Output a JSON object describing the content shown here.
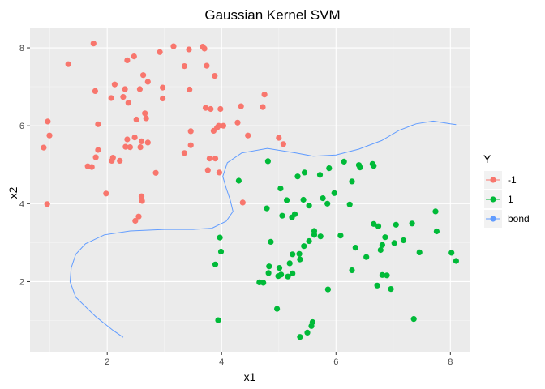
{
  "chart_data": {
    "type": "scatter",
    "title": "Gaussian Kernel SVM",
    "xlabel": "x1",
    "ylabel": "x2",
    "xlim": [
      0.65,
      8.35
    ],
    "ylim": [
      0.2,
      8.5
    ],
    "x_ticks": [
      2,
      4,
      6,
      8
    ],
    "y_ticks": [
      2,
      4,
      6,
      8
    ],
    "grid": true,
    "legend": {
      "title": "Y",
      "position": "right",
      "entries": [
        {
          "label": "-1",
          "color": "#F8766D"
        },
        {
          "label": "1",
          "color": "#00BA38"
        },
        {
          "label": "bond",
          "color": "#619CFF"
        }
      ]
    },
    "series": [
      {
        "name": "-1",
        "color": "#F8766D",
        "points": [
          [
            1.76,
            8.11
          ],
          [
            3.16,
            8.04
          ],
          [
            3.67,
            8.03
          ],
          [
            3.43,
            7.96
          ],
          [
            3.7,
            7.98
          ],
          [
            2.47,
            7.78
          ],
          [
            2.35,
            7.68
          ],
          [
            2.92,
            7.89
          ],
          [
            1.32,
            7.58
          ],
          [
            3.35,
            7.53
          ],
          [
            3.74,
            7.54
          ],
          [
            2.63,
            7.3
          ],
          [
            2.71,
            7.13
          ],
          [
            3.88,
            7.28
          ],
          [
            2.13,
            7.06
          ],
          [
            2.31,
            6.94
          ],
          [
            2.57,
            6.94
          ],
          [
            2.97,
            6.98
          ],
          [
            3.44,
            6.93
          ],
          [
            2.97,
            6.7
          ],
          [
            4.75,
            6.8
          ],
          [
            2.28,
            6.74
          ],
          [
            2.07,
            6.71
          ],
          [
            2.37,
            6.59
          ],
          [
            1.79,
            6.89
          ],
          [
            3.72,
            6.46
          ],
          [
            3.81,
            6.43
          ],
          [
            3.98,
            6.43
          ],
          [
            4.34,
            6.5
          ],
          [
            4.72,
            6.48
          ],
          [
            2.66,
            6.32
          ],
          [
            2.51,
            6.16
          ],
          [
            2.68,
            6.19
          ],
          [
            0.96,
            6.11
          ],
          [
            1.84,
            6.04
          ],
          [
            4.28,
            6.08
          ],
          [
            3.95,
            6.0
          ],
          [
            4.03,
            6.0
          ],
          [
            3.86,
            5.87
          ],
          [
            3.46,
            5.86
          ],
          [
            3.92,
            5.95
          ],
          [
            4.46,
            5.75
          ],
          [
            0.99,
            5.75
          ],
          [
            2.35,
            5.65
          ],
          [
            2.48,
            5.7
          ],
          [
            2.6,
            5.6
          ],
          [
            2.58,
            5.45
          ],
          [
            2.71,
            5.57
          ],
          [
            2.4,
            5.45
          ],
          [
            2.32,
            5.46
          ],
          [
            2.1,
            5.18
          ],
          [
            1.84,
            5.38
          ],
          [
            1.8,
            5.19
          ],
          [
            0.89,
            5.44
          ],
          [
            3.35,
            5.3
          ],
          [
            3.46,
            5.5
          ],
          [
            5.0,
            5.69
          ],
          [
            5.08,
            5.53
          ],
          [
            1.66,
            4.96
          ],
          [
            1.73,
            4.94
          ],
          [
            3.79,
            5.16
          ],
          [
            3.89,
            5.16
          ],
          [
            2.08,
            5.1
          ],
          [
            2.22,
            5.1
          ],
          [
            3.76,
            4.86
          ],
          [
            2.85,
            4.79
          ],
          [
            3.96,
            4.8
          ],
          [
            1.98,
            4.26
          ],
          [
            2.6,
            4.19
          ],
          [
            2.61,
            4.07
          ],
          [
            0.95,
            3.99
          ],
          [
            4.37,
            4.03
          ],
          [
            2.55,
            3.67
          ],
          [
            2.49,
            3.56
          ]
        ]
      },
      {
        "name": "1",
        "color": "#00BA38",
        "points": [
          [
            6.14,
            5.08
          ],
          [
            6.64,
            5.02
          ],
          [
            6.66,
            4.97
          ],
          [
            6.4,
            4.99
          ],
          [
            6.42,
            4.93
          ],
          [
            5.88,
            4.91
          ],
          [
            5.45,
            4.8
          ],
          [
            5.33,
            4.7
          ],
          [
            4.81,
            5.09
          ],
          [
            5.72,
            4.74
          ],
          [
            4.3,
            4.59
          ],
          [
            6.28,
            4.57
          ],
          [
            5.03,
            4.39
          ],
          [
            5.97,
            4.27
          ],
          [
            5.77,
            4.14
          ],
          [
            5.43,
            4.1
          ],
          [
            5.14,
            4.09
          ],
          [
            6.24,
            3.98
          ],
          [
            5.85,
            4.0
          ],
          [
            5.53,
            3.95
          ],
          [
            4.79,
            3.88
          ],
          [
            7.74,
            3.8
          ],
          [
            5.28,
            3.73
          ],
          [
            5.23,
            3.65
          ],
          [
            5.06,
            3.69
          ],
          [
            6.66,
            3.48
          ],
          [
            6.74,
            3.42
          ],
          [
            7.05,
            3.46
          ],
          [
            7.33,
            3.49
          ],
          [
            5.62,
            3.3
          ],
          [
            5.62,
            3.2
          ],
          [
            5.73,
            3.16
          ],
          [
            5.53,
            3.04
          ],
          [
            4.86,
            3.02
          ],
          [
            7.76,
            3.29
          ],
          [
            3.97,
            3.13
          ],
          [
            6.08,
            3.18
          ],
          [
            6.86,
            3.14
          ],
          [
            7.18,
            3.06
          ],
          [
            7.02,
            2.99
          ],
          [
            6.81,
            2.94
          ],
          [
            6.34,
            2.87
          ],
          [
            5.44,
            2.91
          ],
          [
            5.36,
            2.71
          ],
          [
            6.53,
            2.63
          ],
          [
            5.24,
            2.7
          ],
          [
            5.37,
            2.57
          ],
          [
            3.99,
            2.77
          ],
          [
            7.46,
            2.75
          ],
          [
            6.78,
            2.81
          ],
          [
            8.02,
            2.74
          ],
          [
            5.19,
            2.47
          ],
          [
            5.01,
            2.35
          ],
          [
            8.1,
            2.53
          ],
          [
            4.83,
            2.39
          ],
          [
            3.89,
            2.44
          ],
          [
            4.82,
            2.22
          ],
          [
            5.24,
            2.21
          ],
          [
            6.28,
            2.29
          ],
          [
            5.16,
            2.13
          ],
          [
            4.99,
            2.14
          ],
          [
            5.04,
            2.18
          ],
          [
            6.81,
            2.17
          ],
          [
            6.89,
            2.16
          ],
          [
            4.73,
            1.97
          ],
          [
            4.66,
            1.98
          ],
          [
            6.72,
            1.9
          ],
          [
            6.96,
            1.81
          ],
          [
            5.86,
            1.8
          ],
          [
            4.97,
            1.3
          ],
          [
            3.94,
            1.01
          ],
          [
            7.36,
            1.04
          ],
          [
            5.59,
            0.96
          ],
          [
            5.57,
            0.86
          ],
          [
            5.5,
            0.69
          ],
          [
            5.37,
            0.58
          ]
        ]
      },
      {
        "name": "bond",
        "color": "#619CFF",
        "line": [
          [
            2.28,
            0.57
          ],
          [
            2.1,
            0.75
          ],
          [
            1.8,
            1.1
          ],
          [
            1.45,
            1.6
          ],
          [
            1.35,
            2.0
          ],
          [
            1.37,
            2.35
          ],
          [
            1.45,
            2.7
          ],
          [
            1.62,
            2.97
          ],
          [
            1.95,
            3.2
          ],
          [
            2.4,
            3.3
          ],
          [
            3.0,
            3.34
          ],
          [
            3.5,
            3.34
          ],
          [
            3.83,
            3.37
          ],
          [
            4.08,
            3.55
          ],
          [
            4.2,
            3.8
          ],
          [
            4.15,
            4.1
          ],
          [
            4.08,
            4.4
          ],
          [
            4.02,
            4.7
          ],
          [
            4.1,
            5.05
          ],
          [
            4.35,
            5.3
          ],
          [
            4.8,
            5.42
          ],
          [
            5.3,
            5.3
          ],
          [
            5.6,
            5.22
          ],
          [
            6.0,
            5.25
          ],
          [
            6.4,
            5.4
          ],
          [
            6.8,
            5.62
          ],
          [
            7.1,
            5.88
          ],
          [
            7.4,
            6.05
          ],
          [
            7.7,
            6.12
          ],
          [
            8.0,
            6.05
          ],
          [
            8.1,
            6.03
          ]
        ]
      }
    ]
  }
}
